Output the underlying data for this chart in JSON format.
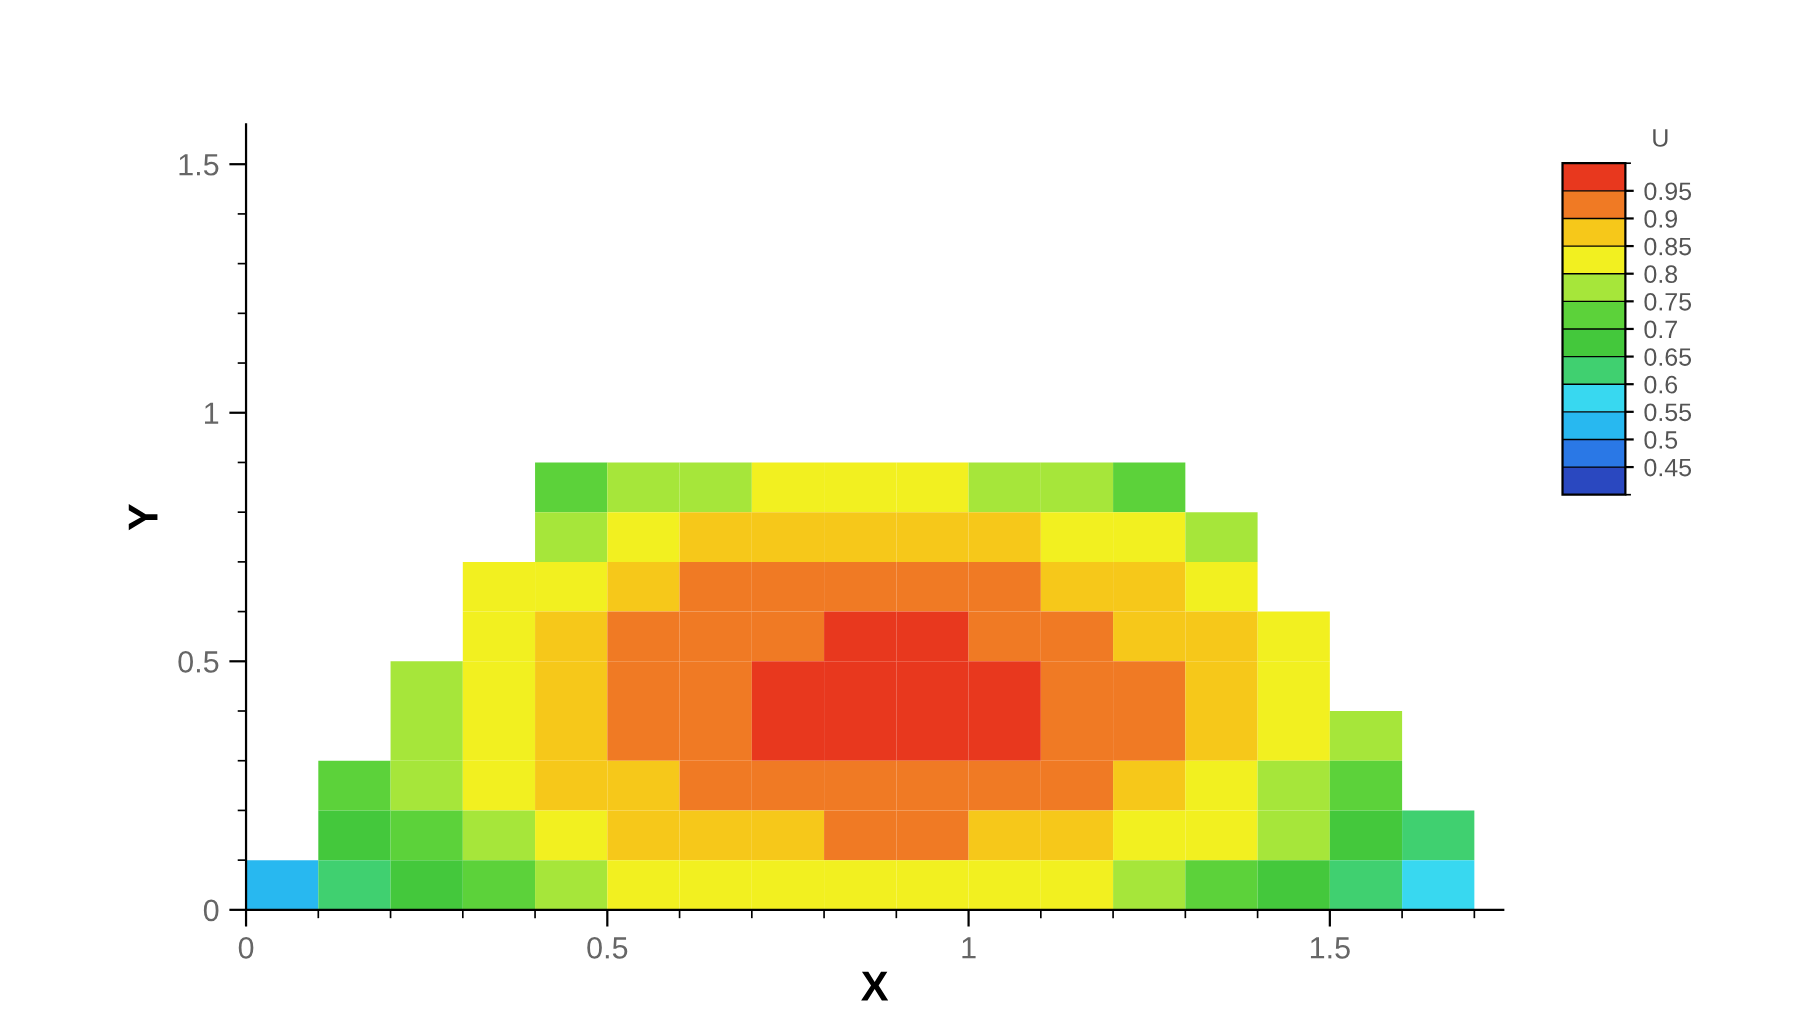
{
  "chart_data": {
    "type": "scatter",
    "xlabel": "X",
    "ylabel": "Y",
    "clabel": "U",
    "marker": "square",
    "x": [
      0.45,
      0.55,
      0.65,
      0.75,
      0.85,
      0.95,
      1.05,
      1.15,
      1.25,
      0.45,
      0.55,
      0.65,
      0.75,
      0.85,
      0.95,
      1.05,
      1.15,
      1.25,
      1.35,
      0.35,
      0.45,
      0.55,
      0.65,
      0.75,
      0.85,
      0.95,
      1.05,
      1.15,
      1.25,
      1.35,
      0.35,
      0.45,
      0.55,
      0.65,
      0.75,
      0.85,
      0.95,
      1.05,
      1.15,
      1.25,
      1.35,
      1.45,
      0.25,
      0.35,
      0.45,
      0.55,
      0.65,
      0.75,
      0.85,
      0.95,
      1.05,
      1.15,
      1.25,
      1.35,
      1.45,
      0.25,
      0.35,
      0.45,
      0.55,
      0.65,
      0.75,
      0.85,
      0.95,
      1.05,
      1.15,
      1.25,
      1.35,
      1.45,
      1.55,
      0.15,
      0.25,
      0.35,
      0.45,
      0.55,
      0.65,
      0.75,
      0.85,
      0.95,
      1.05,
      1.15,
      1.25,
      1.35,
      1.45,
      1.55,
      0.15,
      0.25,
      0.35,
      0.45,
      0.55,
      0.65,
      0.75,
      0.85,
      0.95,
      1.05,
      1.15,
      1.25,
      1.35,
      1.45,
      1.55,
      1.65,
      0.05,
      0.15,
      0.25,
      0.35,
      0.45,
      0.55,
      0.65,
      0.75,
      0.85,
      0.95,
      1.05,
      1.15,
      1.25,
      1.35,
      1.45,
      1.55,
      1.65
    ],
    "values": [
      0.85,
      0.85,
      0.85,
      0.85,
      0.85,
      0.85,
      0.85,
      0.85,
      0.85,
      0.75,
      0.75,
      0.75,
      0.75,
      0.75,
      0.75,
      0.75,
      0.75,
      0.75,
      0.75,
      0.65,
      0.65,
      0.65,
      0.65,
      0.65,
      0.65,
      0.65,
      0.65,
      0.65,
      0.65,
      0.65,
      0.55,
      0.55,
      0.55,
      0.55,
      0.55,
      0.55,
      0.55,
      0.55,
      0.55,
      0.55,
      0.55,
      0.55,
      0.45,
      0.45,
      0.45,
      0.45,
      0.45,
      0.45,
      0.45,
      0.45,
      0.45,
      0.45,
      0.45,
      0.45,
      0.45,
      0.35,
      0.35,
      0.35,
      0.35,
      0.35,
      0.35,
      0.35,
      0.35,
      0.35,
      0.35,
      0.35,
      0.35,
      0.35,
      0.35,
      0.25,
      0.25,
      0.25,
      0.25,
      0.25,
      0.25,
      0.25,
      0.25,
      0.25,
      0.25,
      0.25,
      0.25,
      0.25,
      0.25,
      0.25,
      0.15,
      0.15,
      0.15,
      0.15,
      0.15,
      0.15,
      0.15,
      0.15,
      0.15,
      0.15,
      0.15,
      0.15,
      0.15,
      0.15,
      0.15,
      0.15,
      0.05,
      0.05,
      0.05,
      0.05,
      0.05,
      0.05,
      0.05,
      0.05,
      0.05,
      0.05,
      0.05,
      0.05,
      0.05,
      0.05,
      0.05,
      0.05,
      0.05
    ],
    "cvalues": [
      0.7,
      0.75,
      0.75,
      0.8,
      0.8,
      0.8,
      0.75,
      0.75,
      0.7,
      0.75,
      0.8,
      0.85,
      0.85,
      0.85,
      0.85,
      0.85,
      0.8,
      0.8,
      0.75,
      0.8,
      0.8,
      0.85,
      0.9,
      0.9,
      0.9,
      0.9,
      0.9,
      0.85,
      0.85,
      0.8,
      0.8,
      0.85,
      0.9,
      0.9,
      0.9,
      0.95,
      0.95,
      0.9,
      0.9,
      0.85,
      0.85,
      0.8,
      0.75,
      0.8,
      0.85,
      0.9,
      0.9,
      0.95,
      0.95,
      0.95,
      0.95,
      0.9,
      0.9,
      0.85,
      0.8,
      0.75,
      0.8,
      0.85,
      0.9,
      0.9,
      0.95,
      0.95,
      0.95,
      0.95,
      0.9,
      0.9,
      0.85,
      0.8,
      0.75,
      0.7,
      0.75,
      0.8,
      0.85,
      0.85,
      0.9,
      0.9,
      0.9,
      0.9,
      0.9,
      0.9,
      0.85,
      0.8,
      0.75,
      0.7,
      0.65,
      0.7,
      0.75,
      0.8,
      0.85,
      0.85,
      0.85,
      0.9,
      0.9,
      0.85,
      0.85,
      0.8,
      0.8,
      0.75,
      0.65,
      0.6,
      0.5,
      0.6,
      0.65,
      0.7,
      0.75,
      0.8,
      0.8,
      0.8,
      0.8,
      0.8,
      0.8,
      0.8,
      0.75,
      0.7,
      0.65,
      0.6,
      0.55
    ],
    "clim": [
      0.4,
      1.0
    ],
    "cticks": [
      0.45,
      0.5,
      0.55,
      0.6,
      0.65,
      0.7,
      0.75,
      0.8,
      0.85,
      0.9,
      0.95
    ],
    "xlim": [
      0,
      1.74
    ],
    "xticks": [
      0,
      0.5,
      1,
      1.5
    ],
    "ylim": [
      0,
      1.58
    ],
    "yticks": [
      0,
      0.5,
      1,
      1.5
    ],
    "grid": false
  }
}
